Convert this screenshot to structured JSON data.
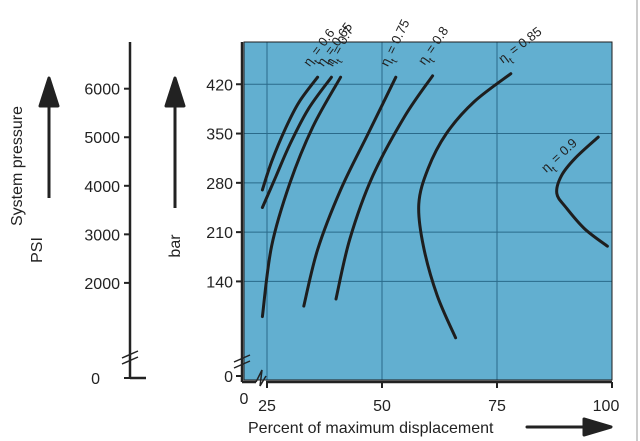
{
  "colors": {
    "plot_background": "#62afd0",
    "grid": "#2a6a8a",
    "curve": "#1e1e1e",
    "axis": "#222222"
  },
  "chart_data": {
    "type": "line",
    "title": "",
    "xlabel": "Percent of maximum displacement",
    "ylabel": "bar",
    "y2label": "System pressure",
    "y2sublabel": "PSI",
    "xlim": [
      20,
      100
    ],
    "ylim": [
      0,
      480
    ],
    "x_ticks": [
      25,
      50,
      75,
      100
    ],
    "x_extra_label": "0",
    "y_ticks_bar": [
      0,
      140,
      210,
      280,
      350,
      420
    ],
    "y_ticks_psi": [
      0,
      2000,
      3000,
      4000,
      5000,
      6000
    ],
    "grid": true,
    "axis_breaks": true,
    "series": [
      {
        "name": "ηt = 0.6",
        "label_prefix": "ηt",
        "label_value": "= 0.6",
        "points": [
          [
            24,
            270
          ],
          [
            26,
            310
          ],
          [
            29,
            357
          ],
          [
            32,
            395
          ],
          [
            36,
            430
          ]
        ]
      },
      {
        "name": "ηt = 0.65",
        "label_prefix": "ηt",
        "label_value": "= 0.65",
        "points": [
          [
            24,
            245
          ],
          [
            27,
            290
          ],
          [
            30,
            335
          ],
          [
            34,
            385
          ],
          [
            39,
            430
          ]
        ]
      },
      {
        "name": "ηt = 0.7",
        "label_prefix": "ηt",
        "label_value": "= 0.7",
        "points": [
          [
            24,
            90
          ],
          [
            26,
            190
          ],
          [
            30,
            280
          ],
          [
            35,
            360
          ],
          [
            41,
            430
          ]
        ]
      },
      {
        "name": "ηt = 0.75",
        "label_prefix": "ηt",
        "label_value": "= 0.75",
        "points": [
          [
            33,
            105
          ],
          [
            36,
            185
          ],
          [
            41,
            270
          ],
          [
            47,
            350
          ],
          [
            53,
            430
          ]
        ]
      },
      {
        "name": "ηt = 0.8",
        "label_prefix": "ηt",
        "label_value": "= 0.8",
        "points": [
          [
            40,
            115
          ],
          [
            43,
            200
          ],
          [
            48,
            290
          ],
          [
            55,
            375
          ],
          [
            61,
            432
          ]
        ]
      },
      {
        "name": "ηt = 0.85",
        "label_prefix": "ηt",
        "label_value": "= 0.85",
        "points": [
          [
            66,
            60
          ],
          [
            62,
            120
          ],
          [
            59,
            190
          ],
          [
            58,
            250
          ],
          [
            60,
            300
          ],
          [
            64,
            350
          ],
          [
            70,
            395
          ],
          [
            78,
            435
          ]
        ]
      },
      {
        "name": "ηt = 0.9",
        "label_prefix": "ηt",
        "label_value": "= 0.9",
        "points": [
          [
            99,
            190
          ],
          [
            94,
            215
          ],
          [
            90,
            245
          ],
          [
            88,
            265
          ],
          [
            89,
            290
          ],
          [
            92,
            315
          ],
          [
            97,
            345
          ]
        ]
      }
    ]
  }
}
